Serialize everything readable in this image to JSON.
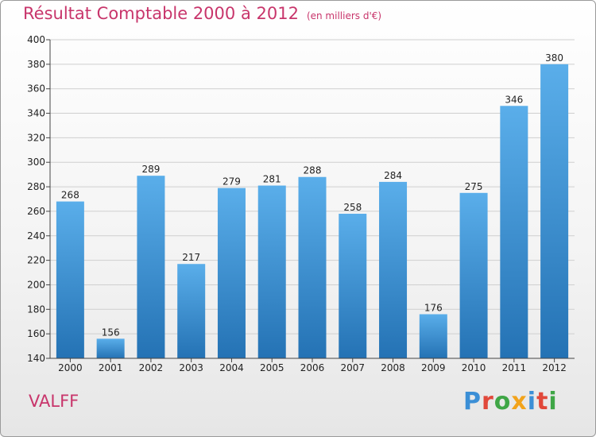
{
  "header": {
    "title": "Résultat Comptable 2000 à 2012",
    "subtitle": "(en milliers d'€)"
  },
  "footer": {
    "place": "VALFF",
    "brand": "Proxiti",
    "brand_letters": [
      {
        "ch": "P",
        "color": "#3b8fd6"
      },
      {
        "ch": "r",
        "color": "#e1483a"
      },
      {
        "ch": "o",
        "color": "#3fa646"
      },
      {
        "ch": "x",
        "color": "#f2a31b"
      },
      {
        "ch": "i",
        "color": "#3b8fd6"
      },
      {
        "ch": "t",
        "color": "#e1483a"
      },
      {
        "ch": "i",
        "color": "#3fa646"
      }
    ]
  },
  "colors": {
    "accent": "#c8356b",
    "bar_top": "#5aaeea",
    "bar_bottom": "#2472b4"
  },
  "chart_data": {
    "type": "bar",
    "title": "Résultat Comptable 2000 à 2012",
    "xlabel": "",
    "ylabel": "",
    "categories": [
      "2000",
      "2001",
      "2002",
      "2003",
      "2004",
      "2005",
      "2006",
      "2007",
      "2008",
      "2009",
      "2010",
      "2011",
      "2012"
    ],
    "values": [
      268,
      156,
      289,
      217,
      279,
      281,
      288,
      258,
      284,
      176,
      275,
      346,
      380
    ],
    "ylim": [
      140,
      400
    ],
    "yticks": [
      140,
      160,
      180,
      200,
      220,
      240,
      260,
      280,
      300,
      320,
      340,
      360,
      380,
      400
    ],
    "grid": true
  }
}
